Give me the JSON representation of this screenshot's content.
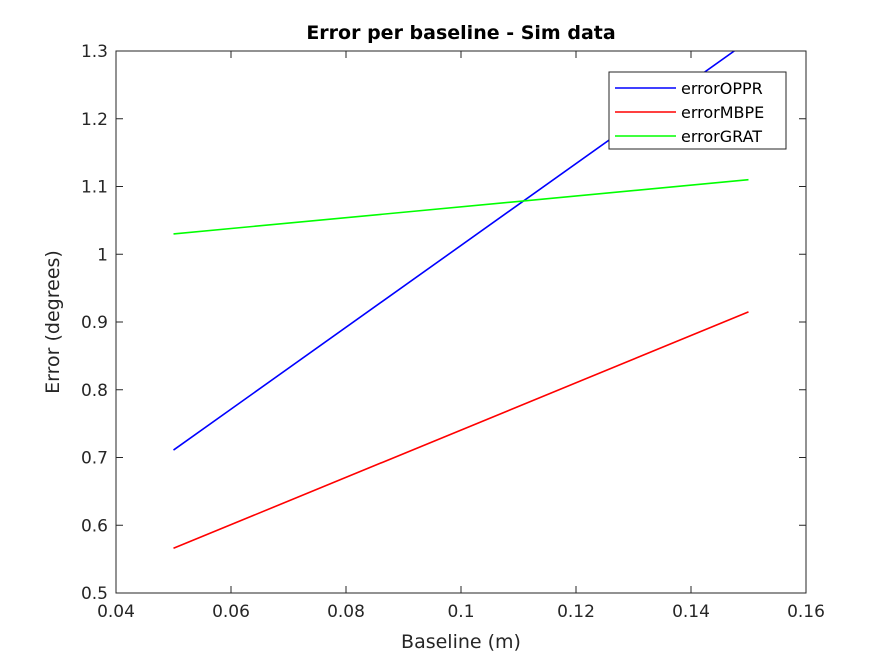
{
  "chart_data": {
    "type": "line",
    "title": "Error per baseline  - Sim data",
    "xlabel": "Baseline (m)",
    "ylabel": "Error (degrees)",
    "xlim": [
      0.04,
      0.16
    ],
    "ylim": [
      0.5,
      1.3
    ],
    "xticks": [
      0.04,
      0.06,
      0.08,
      0.1,
      0.12,
      0.14,
      0.16
    ],
    "xtick_labels": [
      "0.04",
      "0.06",
      "0.08",
      "0.1",
      "0.12",
      "0.14",
      "0.16"
    ],
    "yticks": [
      0.5,
      0.6,
      0.7,
      0.8,
      0.9,
      1.0,
      1.1,
      1.2,
      1.3
    ],
    "ytick_labels": [
      "0.5",
      "0.6",
      "0.7",
      "0.8",
      "0.9",
      "1",
      "1.1",
      "1.2",
      "1.3"
    ],
    "grid": false,
    "legend_position": "top-right",
    "series": [
      {
        "name": "errorOPPR",
        "color": "#0000ff",
        "x": [
          0.05,
          0.15
        ],
        "y": [
          0.711,
          1.315
        ]
      },
      {
        "name": "errorMBPE",
        "color": "#ff0000",
        "x": [
          0.05,
          0.15
        ],
        "y": [
          0.566,
          0.915
        ]
      },
      {
        "name": "errorGRAT",
        "color": "#00ff00",
        "x": [
          0.05,
          0.15
        ],
        "y": [
          1.03,
          1.11
        ]
      }
    ]
  }
}
